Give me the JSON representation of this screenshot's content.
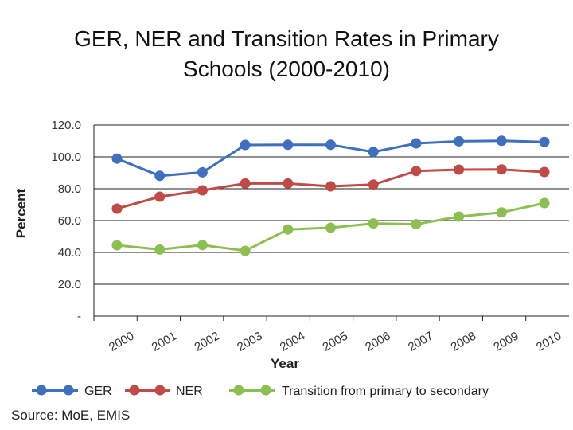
{
  "title_line1": "GER, NER and Transition Rates in Primary",
  "title_line2": "Schools (2000-2010)",
  "source": "Source: MoE, EMIS",
  "chart_data": {
    "type": "line",
    "title": "GER, NER and Transition Rates in Primary Schools (2000-2010)",
    "xlabel": "Year",
    "ylabel": "Percent",
    "categories": [
      "2000",
      "2001",
      "2002",
      "2003",
      "2004",
      "2005",
      "2006",
      "2007",
      "2008",
      "2009",
      "2010"
    ],
    "ylim": [
      0,
      120
    ],
    "yticks": [
      120,
      100,
      80,
      60,
      40,
      20,
      0
    ],
    "ytick_labels": [
      "120.0",
      "100.0",
      "80.0",
      "60.0",
      "40.0",
      "20.0",
      "-"
    ],
    "grid": true,
    "legend_position": "bottom",
    "series": [
      {
        "name": "GER",
        "color": "#3f6fbf",
        "values": [
          98.9,
          88.1,
          90.3,
          107.5,
          107.6,
          107.6,
          103.1,
          108.5,
          109.8,
          110.1,
          109.4
        ]
      },
      {
        "name": "NER",
        "color": "#bf4a46",
        "values": [
          67.5,
          75.0,
          79.0,
          83.3,
          83.3,
          81.5,
          82.6,
          91.1,
          92.0,
          92.1,
          90.5
        ]
      },
      {
        "name": "Transition from primary to secondary",
        "color": "#8cbf4f",
        "values": [
          44.5,
          41.8,
          44.6,
          41.0,
          54.4,
          55.5,
          58.2,
          57.7,
          62.5,
          65.1,
          71.0
        ]
      }
    ]
  }
}
